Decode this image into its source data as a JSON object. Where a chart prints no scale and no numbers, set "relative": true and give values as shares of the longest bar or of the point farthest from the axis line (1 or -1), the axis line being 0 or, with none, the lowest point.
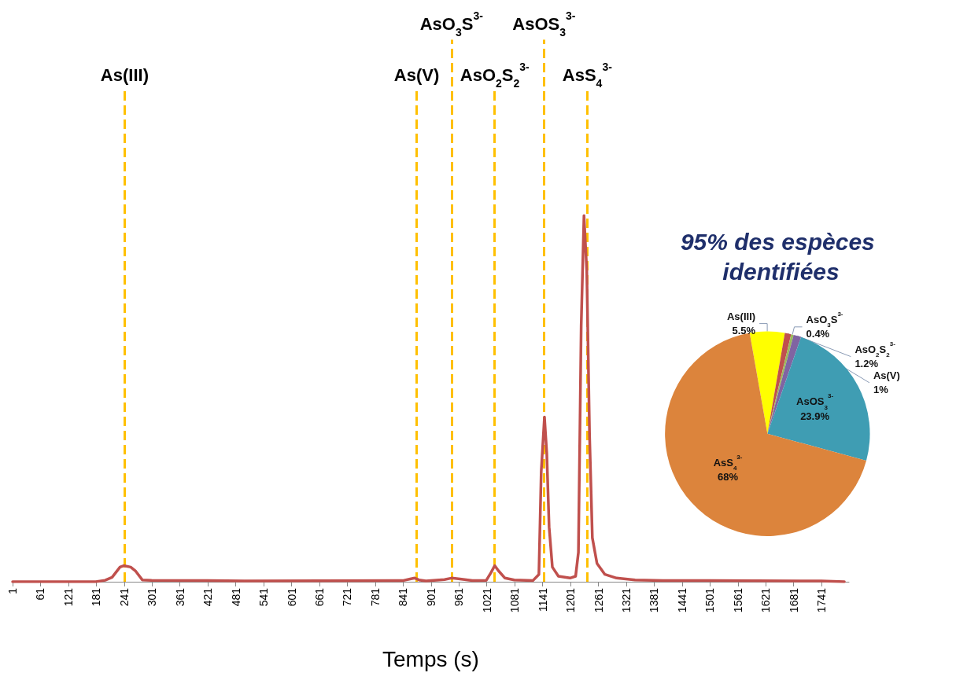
{
  "chart_data": [
    {
      "type": "line",
      "xlabel": "Temps (s)",
      "relative": true,
      "color": "#c0504d",
      "line_style": "solid",
      "x": [
        1,
        180,
        200,
        215,
        232,
        240,
        255,
        265,
        280,
        300,
        420,
        500,
        840,
        858,
        866,
        875,
        890,
        930,
        945,
        960,
        990,
        1020,
        1030,
        1038,
        1046,
        1060,
        1080,
        1120,
        1133,
        1138,
        1145,
        1150,
        1155,
        1162,
        1175,
        1200,
        1212,
        1218,
        1224,
        1230,
        1236,
        1242,
        1248,
        1258,
        1275,
        1300,
        1340,
        1400,
        1500,
        1740,
        1790
      ],
      "values": [
        0,
        0,
        0.004,
        0.012,
        0.04,
        0.044,
        0.04,
        0.03,
        0.005,
        0.004,
        0.003,
        0.002,
        0.003,
        0.008,
        0.01,
        0.005,
        0.002,
        0.006,
        0.01,
        0.008,
        0.003,
        0.004,
        0.025,
        0.044,
        0.03,
        0.01,
        0.005,
        0.003,
        0.02,
        0.3,
        0.45,
        0.35,
        0.15,
        0.04,
        0.015,
        0.01,
        0.015,
        0.08,
        0.7,
        1,
        0.85,
        0.4,
        0.12,
        0.05,
        0.02,
        0.01,
        0.005,
        0.003,
        0.003,
        0.002,
        0
      ],
      "xlim": [
        1,
        1800
      ],
      "xticks": [
        1,
        61,
        121,
        181,
        241,
        301,
        361,
        421,
        481,
        541,
        601,
        661,
        721,
        781,
        841,
        901,
        961,
        1021,
        1081,
        1141,
        1201,
        1261,
        1321,
        1381,
        1441,
        1501,
        1561,
        1621,
        1681,
        1741
      ],
      "ref_lines": [
        {
          "axis": "x",
          "value": 242,
          "label": "As(III)",
          "color": "#ffc000",
          "line_style": "dashed"
        },
        {
          "axis": "x",
          "value": 870,
          "label": "As(V)",
          "color": "#ffc000",
          "line_style": "dashed"
        },
        {
          "axis": "x",
          "value": 945,
          "label": "AsO$_{3}$S$^{3-}$",
          "color": "#ffc000",
          "line_style": "dashed"
        },
        {
          "axis": "x",
          "value": 1038,
          "label": "AsO$_{2}$S$_{2}$$^{3-}$",
          "color": "#ffc000",
          "line_style": "dashed"
        },
        {
          "axis": "x",
          "value": 1144,
          "label": "AsOS$_{3}$$^{3-}$",
          "color": "#ffc000",
          "line_style": "dashed"
        },
        {
          "axis": "x",
          "value": 1237,
          "label": "AsS$_{4}$$^{3-}$",
          "color": "#ffc000",
          "line_style": "dashed"
        }
      ]
    },
    {
      "type": "pie",
      "title": "95% des espèces identifiées",
      "categories": [
        "As(III)",
        "As(V)",
        "AsO$_{3}$S$^{3-}$",
        "AsO$_{2}$S$_{2}$$^{3-}$",
        "AsOS$_{3}$$^{3-}$",
        "AsS$_{4}$$^{3-}$"
      ],
      "values": [
        5.5,
        1,
        0.4,
        1.2,
        23.9,
        68
      ],
      "colors": [
        "#ffff00",
        "#c0504d",
        "#9bbb59",
        "#8064a2",
        "#3f9db3",
        "#dc843c"
      ],
      "value_labels": [
        "5.5%",
        "1%",
        "0.4%",
        "1.2%",
        "23.9%",
        "68%"
      ]
    }
  ]
}
